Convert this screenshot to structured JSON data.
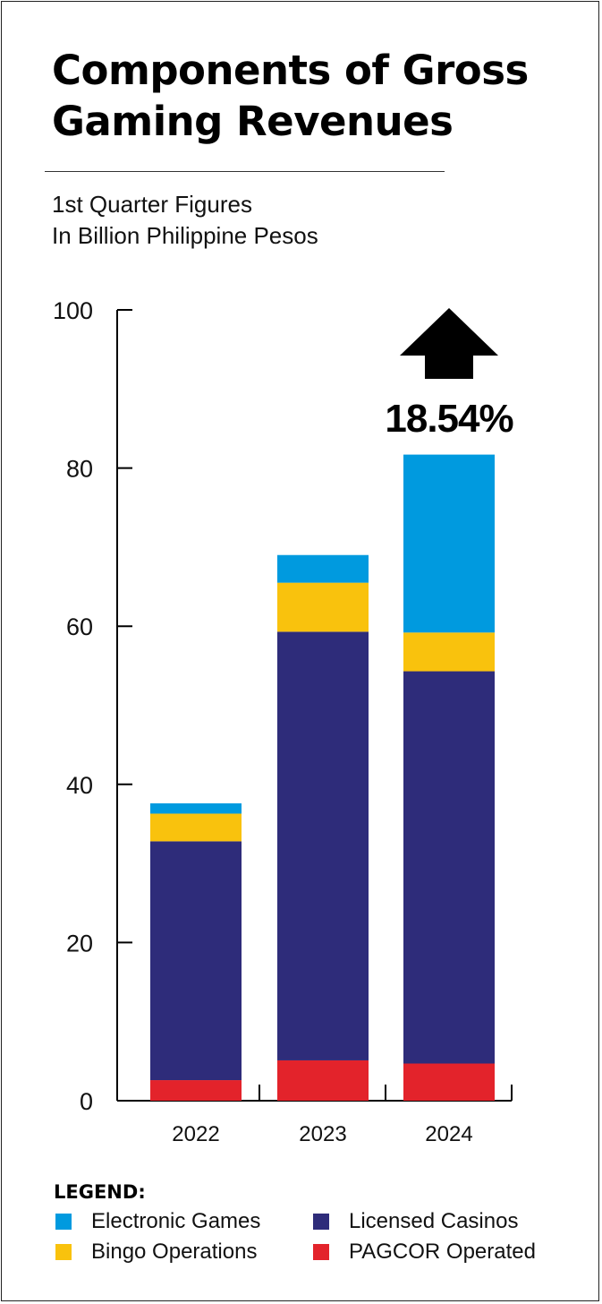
{
  "header": {
    "title_line1": "Components of Gross",
    "title_line2": "Gaming Revenues",
    "subtitle_line1": "1st Quarter Figures",
    "subtitle_line2": "In Billion Philippine Pesos"
  },
  "annotation": {
    "growth_label": "18.54%",
    "arrow_icon": "up-arrow-icon",
    "year": "2024"
  },
  "legend": {
    "title": "LEGEND:",
    "items": [
      {
        "label": "Electronic Games",
        "color": "#009ADF"
      },
      {
        "label": "Licensed Casinos",
        "color": "#2E2C7A"
      },
      {
        "label": "Bingo Operations",
        "color": "#F9C20D"
      },
      {
        "label": "PAGCOR Operated",
        "color": "#E3232B"
      }
    ]
  },
  "chart_data": {
    "type": "bar",
    "stacked": true,
    "categories": [
      "2022",
      "2023",
      "2024"
    ],
    "series": [
      {
        "name": "PAGCOR Operated",
        "color": "#E3232B",
        "values": [
          2.6,
          5.1,
          4.7
        ]
      },
      {
        "name": "Licensed Casinos",
        "color": "#2E2C7A",
        "values": [
          30.2,
          54.2,
          49.6
        ]
      },
      {
        "name": "Bingo Operations",
        "color": "#F9C20D",
        "values": [
          3.5,
          6.2,
          4.9
        ]
      },
      {
        "name": "Electronic Games",
        "color": "#009ADF",
        "values": [
          1.3,
          3.5,
          22.5
        ]
      }
    ],
    "ylim": [
      0,
      100
    ],
    "yticks": [
      0,
      20,
      40,
      60,
      80,
      100
    ],
    "xlabel": "",
    "ylabel": "",
    "grid": false,
    "legend_position": "bottom"
  }
}
